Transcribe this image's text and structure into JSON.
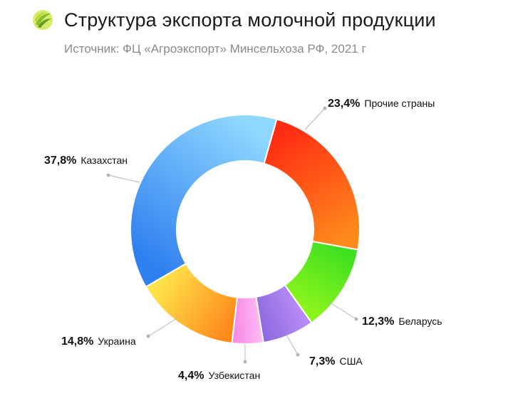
{
  "header": {
    "title": "Структура экспорта молочной продукции",
    "subtitle": "Источник: ФЦ «Агроэкспорт» Минсельхоза РФ, 2021 г",
    "logo_icon": "wheat-leaf-logo-icon"
  },
  "chart_data": {
    "type": "pie",
    "donut": true,
    "title": "Структура экспорта молочной продукции",
    "subtitle": "Источник: ФЦ «Агроэкспорт» Минсельхоза РФ, 2021 г",
    "unit": "%",
    "slices": [
      {
        "name": "Прочие страны",
        "value": 23.4,
        "pct_label": "23,4%",
        "colors": [
          "#ff2d12",
          "#ff8a1c"
        ]
      },
      {
        "name": "Беларусь",
        "value": 12.3,
        "pct_label": "12,3%",
        "colors": [
          "#3fe020",
          "#8cf41c"
        ]
      },
      {
        "name": "США",
        "value": 7.3,
        "pct_label": "7,3%",
        "colors": [
          "#b68bf5",
          "#8f6be0"
        ]
      },
      {
        "name": "Узбекистан",
        "value": 4.4,
        "pct_label": "4,4%",
        "colors": [
          "#ffb8f4",
          "#f58ce6"
        ]
      },
      {
        "name": "Украина",
        "value": 14.8,
        "pct_label": "14,8%",
        "colors": [
          "#ff8a1c",
          "#ffe24a"
        ]
      },
      {
        "name": "Казахстан",
        "value": 37.8,
        "pct_label": "37,8%",
        "colors": [
          "#2f80f0",
          "#8fd8ff"
        ]
      }
    ]
  }
}
